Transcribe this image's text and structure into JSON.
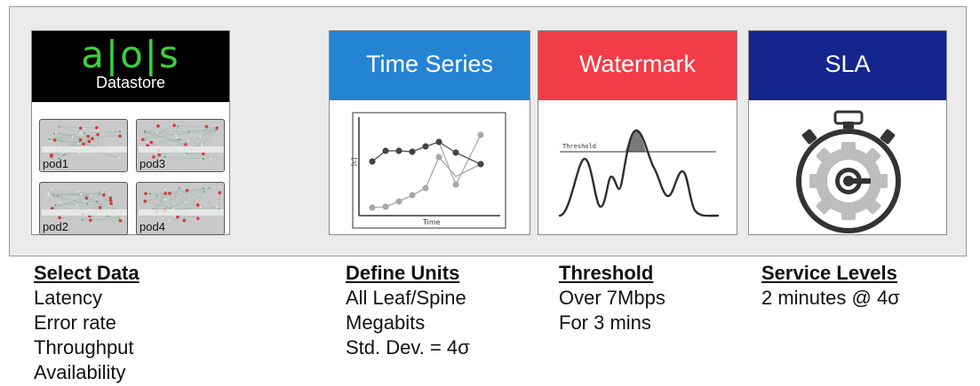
{
  "datastore": {
    "logo": "a|o|s",
    "subtitle": "Datastore",
    "pods": [
      "pod1",
      "pod3",
      "pod2",
      "pod4"
    ]
  },
  "cards": {
    "time_series": {
      "title": "Time Series",
      "chart_ylabel": "[c]",
      "chart_xlabel": "Time"
    },
    "watermark": {
      "title": "Watermark",
      "chart_line_label": "Threshold"
    },
    "sla": {
      "title": "SLA"
    }
  },
  "columns": [
    {
      "heading": "Select Data",
      "lines": [
        "Latency",
        "Error rate",
        "Throughput",
        "Availability"
      ]
    },
    {
      "heading": "Define Units",
      "lines": [
        "All Leaf/Spine",
        "Megabits",
        "Std. Dev. = 4σ"
      ]
    },
    {
      "heading": "Threshold",
      "lines": [
        "Over 7Mbps",
        "For 3 mins"
      ]
    },
    {
      "heading": "Service Levels",
      "lines": [
        "2 minutes @ 4σ"
      ]
    }
  ],
  "colors": {
    "logo_green": "#39d23a",
    "time_series_blue": "#2583d4",
    "watermark_red": "#f23d48",
    "sla_navy": "#14258e"
  }
}
